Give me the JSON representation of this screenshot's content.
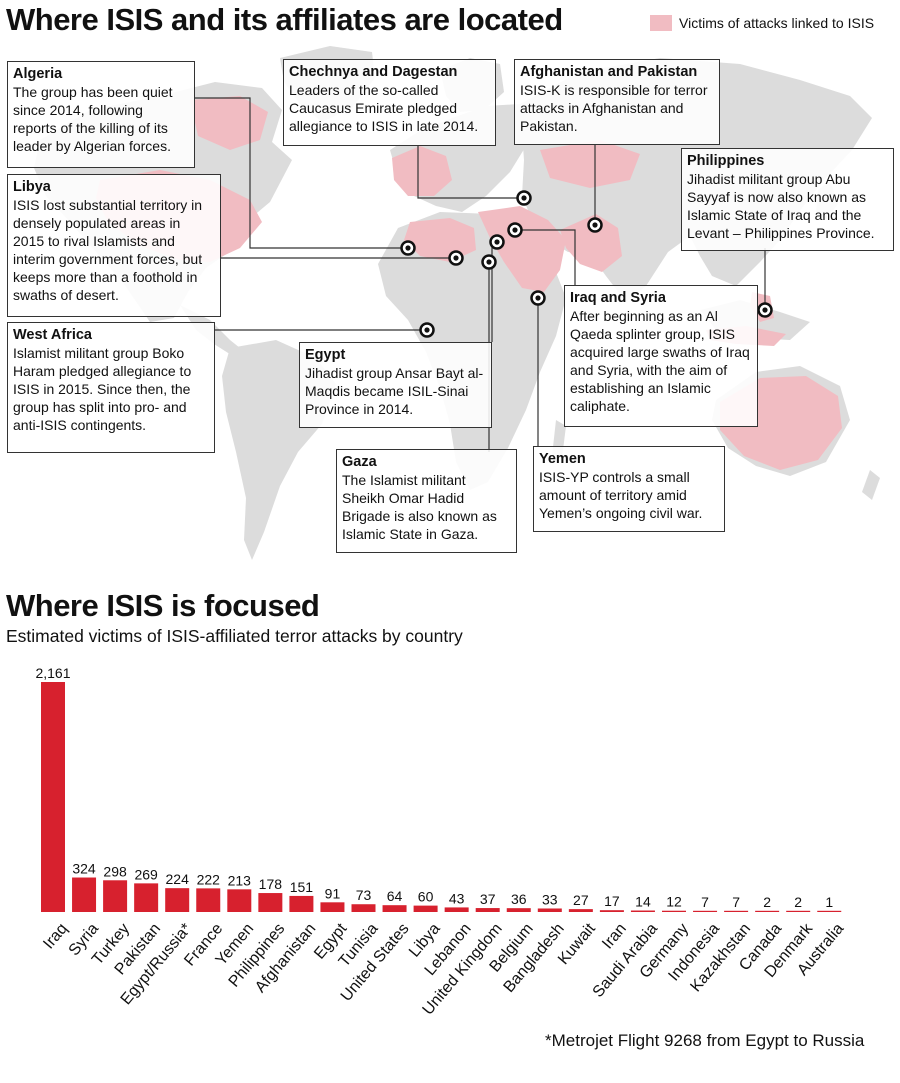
{
  "map": {
    "title": "Where ISIS and its affiliates are located",
    "legend_label": "Victims of attacks linked to ISIS",
    "colors": {
      "land": "#dcdcdc",
      "victims": "#f1bcc2",
      "ocean": "#ffffff"
    },
    "annotations": [
      {
        "id": "algeria",
        "title": "Algeria",
        "text": "The group has been quiet since 2014, following reports of the killing of its leader by Algerian forces."
      },
      {
        "id": "chechnya",
        "title": "Chechnya and Dagestan",
        "text": "Leaders of the so-called Caucasus Emirate pledged allegiance to ISIS in late 2014."
      },
      {
        "id": "afghanistan",
        "title": "Afghanistan and Pakistan",
        "text": "ISIS-K is responsible for terror attacks in Afghanistan and Pakistan."
      },
      {
        "id": "philippines",
        "title": "Philippines",
        "text": "Jihadist militant group Abu Sayyaf is now also known as Islamic State of Iraq and the Levant – Philippines Province."
      },
      {
        "id": "libya",
        "title": "Libya",
        "text": "ISIS lost substantial territory in densely populated areas in 2015 to rival Islamists and interim government forces, but keeps more than a foothold in swaths of desert."
      },
      {
        "id": "west_africa",
        "title": "West Africa",
        "text": "Islamist militant group Boko Haram pledged allegiance to ISIS in 2015. Since then, the group has split into pro- and anti-ISIS contingents."
      },
      {
        "id": "egypt",
        "title": "Egypt",
        "text": "Jihadist group Ansar Bayt al-Maqdis became ISIL-Sinai Province in 2014."
      },
      {
        "id": "iraq_syria",
        "title": "Iraq and Syria",
        "text": "After beginning as an Al Qaeda splinter group, ISIS acquired large swaths of Iraq and Syria, with the aim of establishing an Islamic caliphate."
      },
      {
        "id": "gaza",
        "title": "Gaza",
        "text": "The Islamist militant Sheikh Omar Hadid Brigade is also known as Islamic State in Gaza."
      },
      {
        "id": "yemen",
        "title": "Yemen",
        "text": "ISIS-YP controls a small amount of territory amid Yemen’s ongoing civil war."
      }
    ]
  },
  "chart_data": {
    "type": "bar",
    "title": "Where ISIS is focused",
    "subtitle": "Estimated victims of ISIS-affiliated terror attacks by country",
    "categories": [
      "Iraq",
      "Syria",
      "Turkey",
      "Pakistan",
      "Egypt/Russia*",
      "France",
      "Yemen",
      "Philippines",
      "Afghanistan",
      "Egypt",
      "Tunisia",
      "United States",
      "Libya",
      "Lebanon",
      "United Kingdom",
      "Belgium",
      "Bangladesh",
      "Kuwait",
      "Iran",
      "Saudi Arabia",
      "Germany",
      "Indonesia",
      "Kazakhstan",
      "Canada",
      "Denmark",
      "Australia"
    ],
    "values": [
      2161,
      324,
      298,
      269,
      224,
      222,
      213,
      178,
      151,
      91,
      73,
      64,
      60,
      43,
      37,
      36,
      33,
      27,
      17,
      14,
      12,
      7,
      7,
      2,
      2,
      1
    ],
    "value_labels": [
      "2,161",
      "324",
      "298",
      "269",
      "224",
      "222",
      "213",
      "178",
      "151",
      "91",
      "73",
      "64",
      "60",
      "43",
      "37",
      "36",
      "33",
      "27",
      "17",
      "14",
      "12",
      "7",
      "7",
      "2",
      "2",
      "1"
    ],
    "ylim": [
      0,
      2161
    ],
    "bar_color": "#d7212e",
    "xlabel": "",
    "ylabel": "",
    "grid": false,
    "footnote": "*Metrojet Flight 9268 from Egypt to Russia"
  }
}
